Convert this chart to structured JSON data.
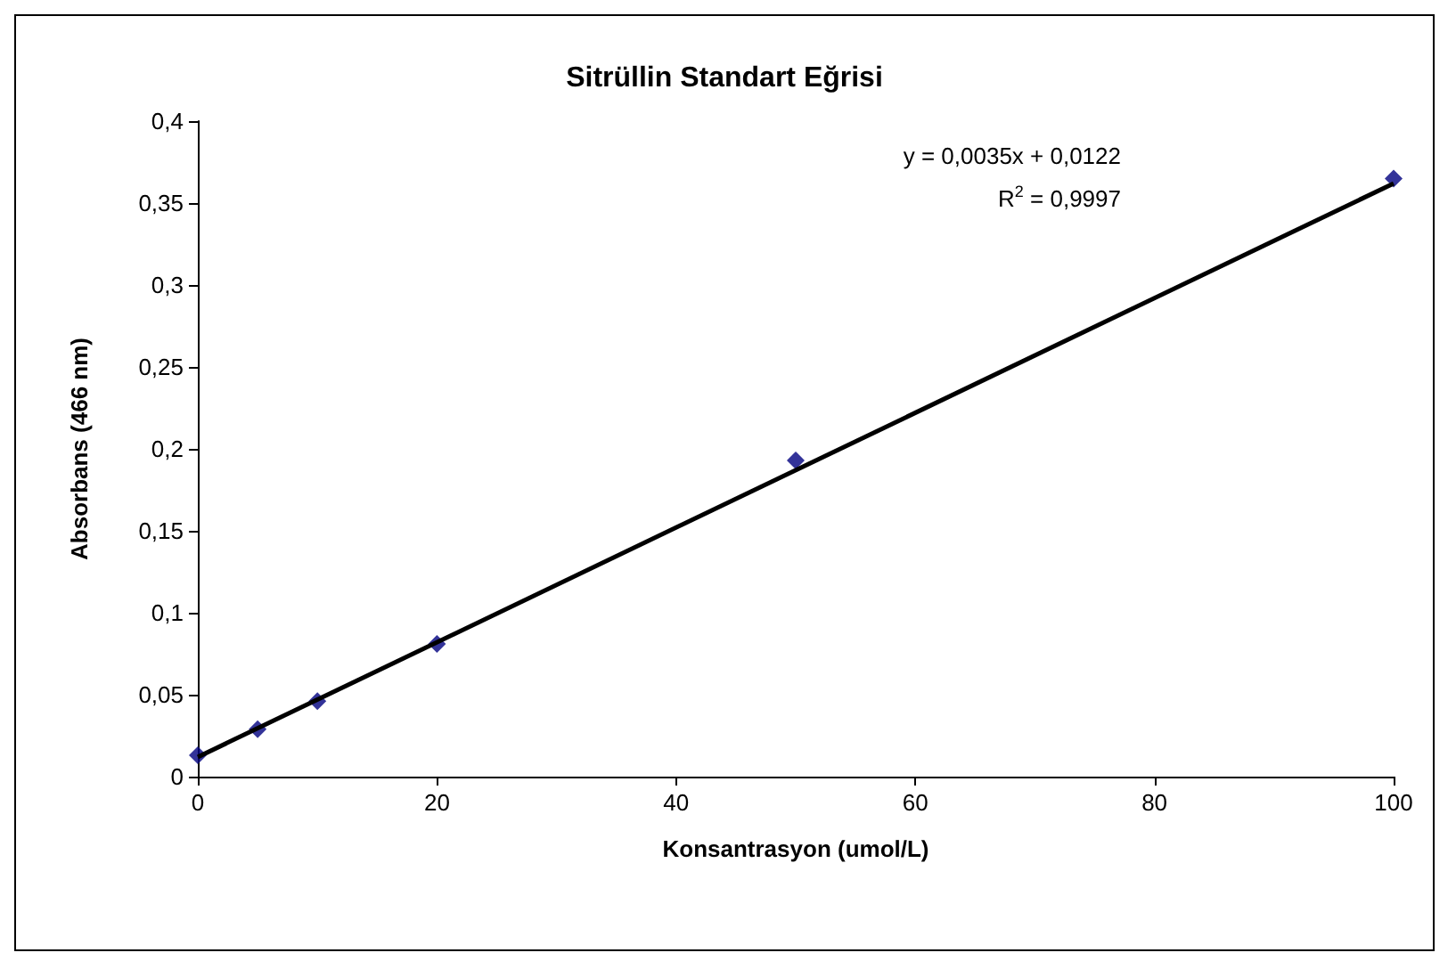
{
  "chart_data": {
    "type": "scatter",
    "title": "Sitrüllin Standart Eğrisi",
    "xlabel": "Konsantrasyon (umol/L)",
    "ylabel": "Absorbans (466 nm)",
    "annotations": [
      "y = 0,0035x + 0,0122",
      "R$^{2}$ = 0,9997"
    ],
    "x": [
      0,
      5,
      10,
      20,
      50,
      100
    ],
    "series": [
      {
        "type": "scatter",
        "color": "#000080",
        "values": [
          0.013,
          0.029,
          0.046,
          0.081,
          0.193,
          0.365
        ],
        "marker": "diamond"
      },
      {
        "type": "line",
        "color": "#000000",
        "x": [
          0,
          100
        ],
        "values": [
          0.012,
          0.362
        ],
        "marker": "none",
        "line_style": "solid"
      }
    ],
    "xlim": [
      0,
      100
    ],
    "xticks": [
      0,
      20,
      40,
      60,
      80,
      100
    ],
    "ylim": [
      0,
      0.4
    ],
    "yticks": [
      0,
      {
        "value": 0.05,
        "label": "0,05"
      },
      {
        "value": 0.1,
        "label": "0,1"
      },
      {
        "value": 0.15,
        "label": "0,15"
      },
      {
        "value": 0.2,
        "label": "0,2"
      },
      {
        "value": 0.25,
        "label": "0,25"
      },
      {
        "value": 0.3,
        "label": "0,3"
      },
      {
        "value": 0.35,
        "label": "0,35"
      },
      {
        "value": 0.4,
        "label": "0,4"
      }
    ],
    "grid": false
  }
}
